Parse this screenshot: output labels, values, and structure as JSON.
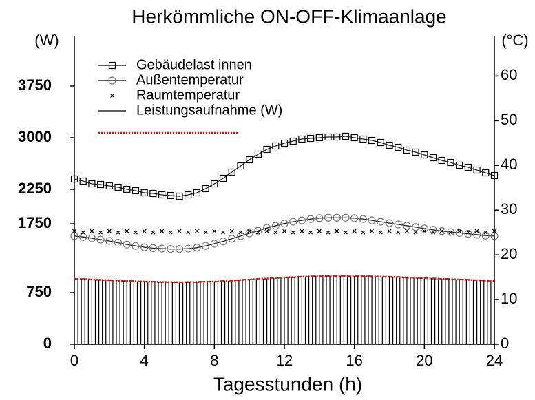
{
  "chart_data": {
    "type": "line",
    "title": "Herkömmliche ON-OFF-Klimaanlage",
    "xlabel": "Tagesstunden (h)",
    "ylabel": "(W)",
    "y2label": "(°C)",
    "xlim": [
      0,
      24
    ],
    "xticks": [
      0,
      4,
      8,
      12,
      16,
      20,
      24
    ],
    "ylim": [
      0,
      4480
    ],
    "yticks": [
      0,
      750,
      1750,
      2250,
      3000,
      3750
    ],
    "y2lim": [
      0,
      69
    ],
    "y2ticks": [
      0,
      10,
      20,
      30,
      40,
      50,
      60
    ],
    "legend": "upper left",
    "x": [
      0,
      0.5,
      1,
      1.5,
      2,
      2.5,
      3,
      3.5,
      4,
      4.5,
      5,
      5.5,
      6,
      6.5,
      7,
      7.5,
      8,
      8.5,
      9,
      9.5,
      10,
      10.5,
      11,
      11.5,
      12,
      12.5,
      13,
      13.5,
      14,
      14.5,
      15,
      15.5,
      16,
      16.5,
      17,
      17.5,
      18,
      18.5,
      19,
      19.5,
      20,
      20.5,
      21,
      21.5,
      22,
      22.5,
      23,
      23.5,
      24
    ],
    "series": [
      {
        "name": "Gebäudelast innen",
        "color": "#000000",
        "marker": "square",
        "line": true,
        "values": [
          2400,
          2370,
          2330,
          2320,
          2300,
          2280,
          2250,
          2230,
          2200,
          2190,
          2170,
          2160,
          2150,
          2170,
          2200,
          2260,
          2330,
          2410,
          2500,
          2590,
          2680,
          2760,
          2830,
          2880,
          2920,
          2950,
          2980,
          2990,
          3000,
          3010,
          3010,
          3020,
          3000,
          2980,
          2960,
          2930,
          2890,
          2860,
          2820,
          2790,
          2750,
          2710,
          2670,
          2640,
          2600,
          2570,
          2530,
          2490,
          2450
        ]
      },
      {
        "name": "Außentemperatur",
        "color": "#777777",
        "marker": "circle",
        "line": true,
        "axis": "y2",
        "values": [
          24.2,
          24.0,
          23.7,
          23.4,
          23.1,
          22.7,
          22.3,
          22.0,
          21.7,
          21.5,
          21.4,
          21.3,
          21.3,
          21.4,
          21.6,
          22.0,
          22.5,
          23.0,
          23.6,
          24.2,
          24.8,
          25.4,
          26.0,
          26.5,
          27.0,
          27.4,
          27.7,
          28.0,
          28.2,
          28.3,
          28.3,
          28.3,
          28.2,
          28.0,
          27.7,
          27.4,
          27.1,
          26.8,
          26.5,
          26.2,
          25.9,
          25.6,
          25.3,
          25.1,
          24.9,
          24.7,
          24.5,
          24.3,
          24.2
        ]
      },
      {
        "name": "Raumtemperatur",
        "color": "#000000",
        "marker": "dot",
        "line": false,
        "axis": "y2",
        "values": [
          25.3,
          25.0,
          25.3,
          25.0,
          25.3,
          25.0,
          25.3,
          25.0,
          25.3,
          25.0,
          25.3,
          25.0,
          25.3,
          25.0,
          25.3,
          25.0,
          25.3,
          25.0,
          25.3,
          25.0,
          25.3,
          25.0,
          25.3,
          25.0,
          25.3,
          25.0,
          25.3,
          25.0,
          25.3,
          25.0,
          25.3,
          25.0,
          25.3,
          25.0,
          25.3,
          25.0,
          25.3,
          25.0,
          25.3,
          25.0,
          25.3,
          25.0,
          25.3,
          25.0,
          25.3,
          25.0,
          25.3,
          25.0,
          25.3
        ]
      },
      {
        "name": "Leistungsaufnahme (W)",
        "color": "#000000",
        "marker": "none",
        "line": true,
        "step": true,
        "x": [
          0,
          0.2,
          0.4,
          0.6,
          0.8,
          1,
          1.2,
          1.4,
          1.6,
          1.8,
          2,
          2.2,
          2.4,
          2.6,
          2.8,
          3,
          3.2,
          3.4,
          3.6,
          3.8,
          4,
          4.2,
          4.4,
          4.6,
          4.8,
          5,
          5.2,
          5.4,
          5.6,
          5.8,
          6,
          6.2,
          6.4,
          6.6,
          6.8,
          7,
          7.2,
          7.4,
          7.6,
          7.8,
          8,
          8.2,
          8.4,
          8.6,
          8.8,
          9,
          9.2,
          9.4,
          9.6,
          9.8,
          10,
          10.2,
          10.4,
          10.6,
          10.8,
          11,
          11.2,
          11.4,
          11.6,
          11.8,
          12,
          12.2,
          12.4,
          12.6,
          12.8,
          13,
          13.2,
          13.4,
          13.6,
          13.8,
          14,
          14.2,
          14.4,
          14.6,
          14.8,
          15,
          15.2,
          15.4,
          15.6,
          15.8,
          16,
          16.2,
          16.4,
          16.6,
          16.8,
          17,
          17.2,
          17.4,
          17.6,
          17.8,
          18,
          18.2,
          18.4,
          18.6,
          18.8,
          19,
          19.2,
          19.4,
          19.6,
          19.8,
          20,
          20.2,
          20.4,
          20.6,
          20.8,
          21,
          21.2,
          21.4,
          21.6,
          21.8,
          22,
          22.2,
          22.4,
          22.6,
          22.8,
          23,
          23.2,
          23.4,
          23.6,
          23.8,
          24
        ],
        "values": [
          950,
          0,
          950,
          0,
          940,
          0,
          940,
          0,
          930,
          0,
          930,
          0,
          930,
          0,
          920,
          0,
          920,
          0,
          910,
          0,
          910,
          0,
          910,
          0,
          900,
          0,
          900,
          0,
          900,
          0,
          900,
          0,
          900,
          0,
          900,
          0,
          910,
          0,
          910,
          0,
          910,
          0,
          920,
          0,
          920,
          0,
          930,
          0,
          940,
          0,
          940,
          0,
          950,
          0,
          950,
          0,
          960,
          0,
          970,
          0,
          970,
          0,
          970,
          0,
          980,
          0,
          980,
          0,
          990,
          0,
          990,
          0,
          990,
          0,
          990,
          0,
          990,
          0,
          990,
          0,
          990,
          0,
          990,
          0,
          990,
          0,
          980,
          0,
          980,
          0,
          980,
          0,
          980,
          0,
          970,
          0,
          970,
          0,
          960,
          0,
          960,
          0,
          960,
          0,
          950,
          0,
          950,
          0,
          940,
          0,
          940,
          0,
          940,
          0,
          930,
          0,
          930,
          0,
          920,
          0,
          920
        ]
      },
      {
        "color": "#ff0000",
        "marker": "none",
        "line": true,
        "dotted": true,
        "values": [
          950,
          945,
          940,
          935,
          930,
          925,
          920,
          915,
          910,
          908,
          905,
          903,
          900,
          903,
          905,
          908,
          910,
          918,
          925,
          933,
          940,
          948,
          955,
          963,
          970,
          975,
          980,
          985,
          990,
          990,
          990,
          990,
          990,
          988,
          985,
          983,
          980,
          975,
          970,
          965,
          960,
          955,
          950,
          945,
          940,
          935,
          930,
          925,
          920
        ]
      }
    ]
  }
}
